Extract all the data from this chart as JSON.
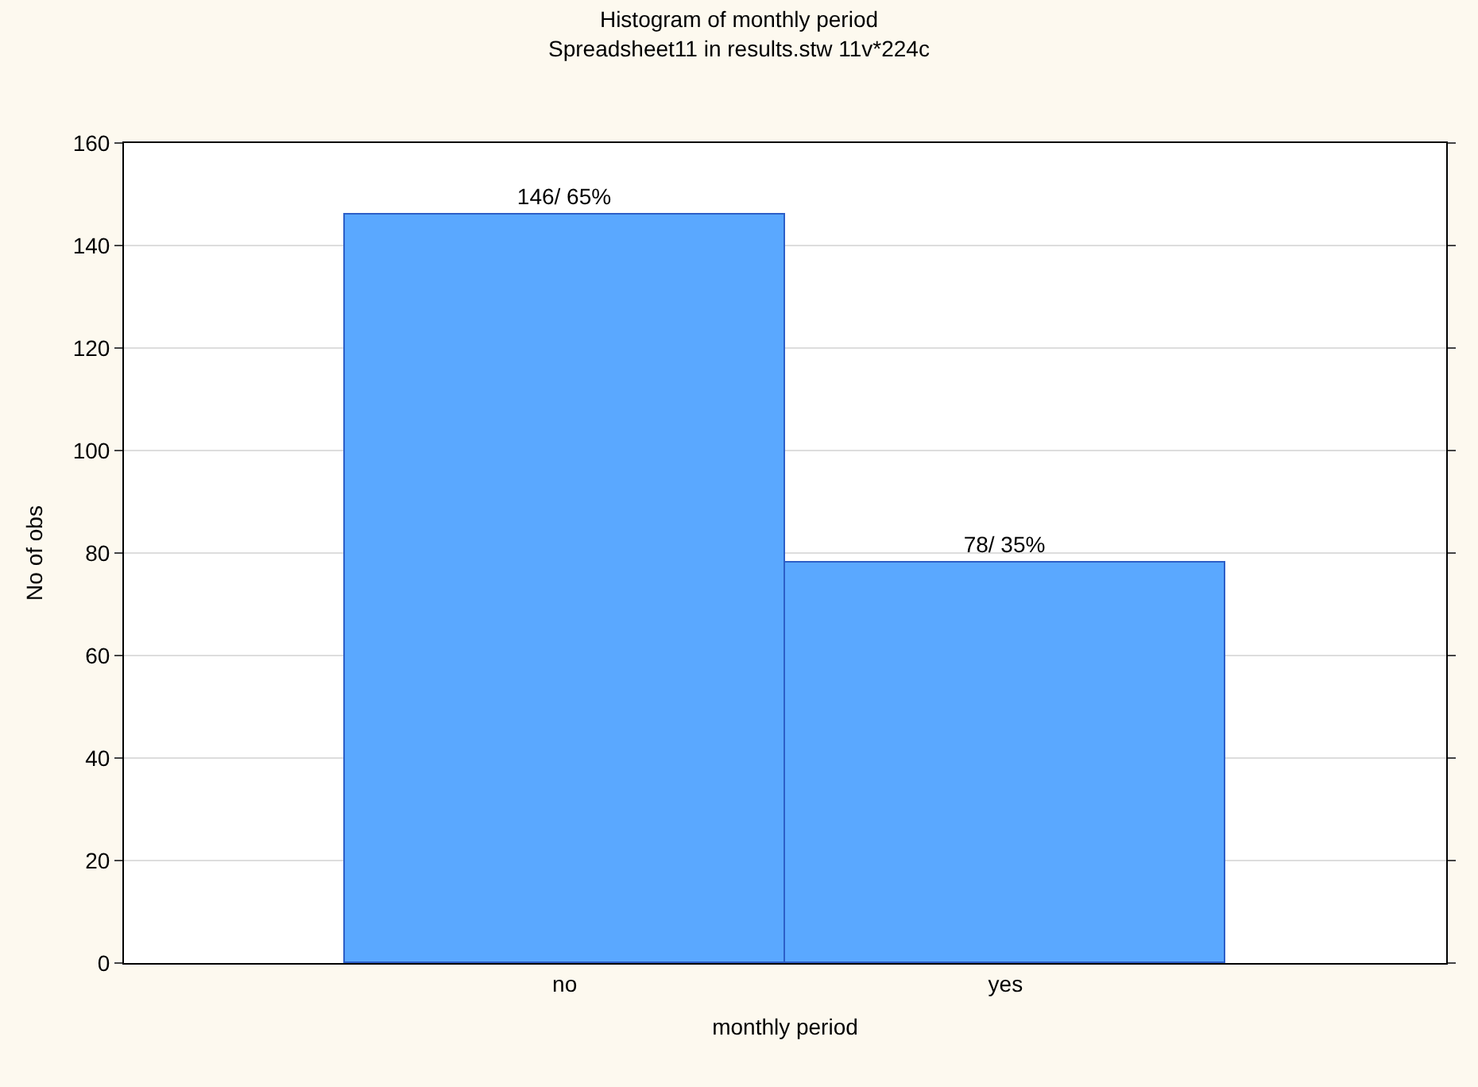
{
  "chart_data": {
    "type": "bar",
    "title": "Histogram of monthly period",
    "subtitle": "Spreadsheet11 in results.stw 11v*224c",
    "xlabel": "monthly period",
    "ylabel": "No of obs",
    "categories": [
      "no",
      "yes"
    ],
    "values": [
      146,
      78
    ],
    "value_labels": [
      "146/ 65%",
      "78/ 35%"
    ],
    "color": "#5aa8ff",
    "ylim": [
      0,
      160
    ],
    "yticks": [
      0,
      20,
      40,
      60,
      80,
      100,
      120,
      140,
      160
    ],
    "grid": "y",
    "legend": false
  }
}
